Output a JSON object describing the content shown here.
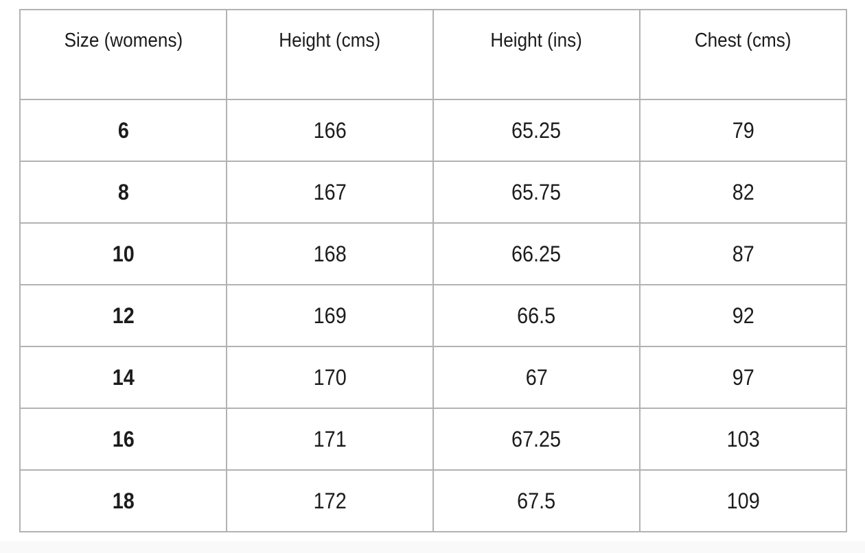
{
  "colors": {
    "grid_line": "#b2b2b2",
    "text": "#1c1c1c",
    "background": "#ffffff",
    "footer_strip": "#faf9f9"
  },
  "chart_data": {
    "type": "table",
    "columns": [
      "Size (womens)",
      "Height (cms)",
      "Height (ins)",
      "Chest (cms)"
    ],
    "rows": [
      [
        "6",
        "166",
        "65.25",
        "79"
      ],
      [
        "8",
        "167",
        "65.75",
        "82"
      ],
      [
        "10",
        "168",
        "66.25",
        "87"
      ],
      [
        "12",
        "169",
        "66.5",
        "92"
      ],
      [
        "14",
        "170",
        "67",
        "97"
      ],
      [
        "16",
        "171",
        "67.25",
        "103"
      ],
      [
        "18",
        "172",
        "67.5",
        "109"
      ]
    ]
  }
}
